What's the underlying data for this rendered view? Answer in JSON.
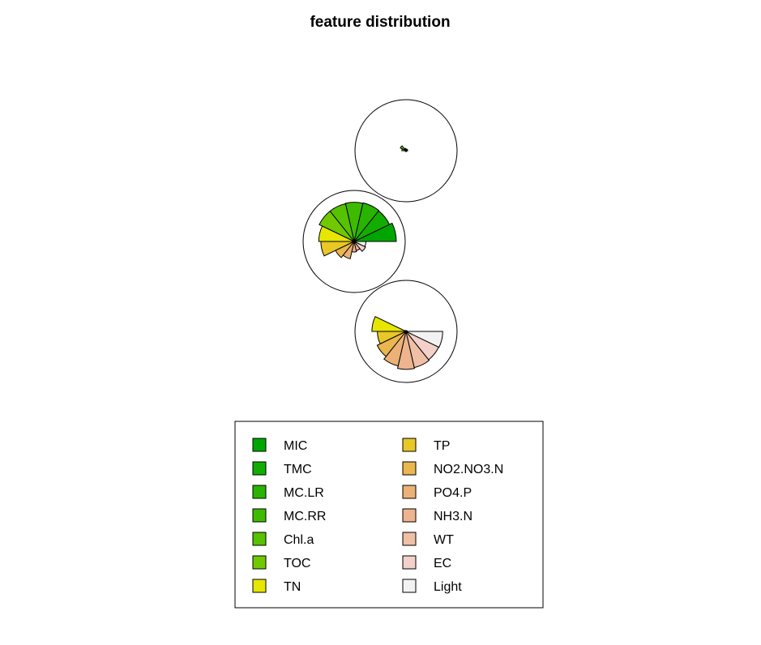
{
  "chart_data": {
    "type": "segment-star",
    "title": "feature distribution",
    "features": [
      "MIC",
      "TMC",
      "MC.LR",
      "MC.RR",
      "Chl.a",
      "TOC",
      "TN",
      "TP",
      "NO2.NO3.N",
      "PO4.P",
      "NH3.N",
      "WT",
      "EC",
      "Light"
    ],
    "colors": [
      "#00A600",
      "#13AD00",
      "#28B400",
      "#3EBB00",
      "#56C200",
      "#70C900",
      "#8BD000",
      "#A7D700",
      "#C4DE00",
      "#E3E500",
      "#E6D31E",
      "#E8C32E",
      "#EBB43E",
      "#EDA84D"
    ],
    "legend_colors": [
      "#00A600",
      "#13AD00",
      "#28B400",
      "#3EBB00",
      "#56C200",
      "#70C900",
      "#E6E600",
      "#E8C727",
      "#EAB64E",
      "#ECB176",
      "#EDB48E",
      "#EFBFA6",
      "#F1D1C9",
      "#F2F2F2"
    ],
    "series": [
      {
        "values": [
          0.04,
          0.04,
          0.04,
          0.04,
          0.06,
          0.15,
          0.1,
          0.02,
          0.02,
          0.02,
          0.02,
          0.02,
          0.02,
          0.02
        ]
      },
      {
        "values": [
          1.0,
          0.93,
          0.94,
          0.93,
          0.92,
          0.92,
          0.84,
          0.79,
          0.49,
          0.42,
          0.25,
          0.22,
          0.3,
          0.28
        ]
      },
      {
        "values": [
          0.03,
          0.02,
          0.02,
          0.02,
          0.02,
          0.03,
          0.81,
          0.68,
          0.76,
          0.84,
          0.9,
          0.88,
          0.86,
          0.87
        ]
      }
    ],
    "legend": {
      "position": "bottom",
      "columns": 2,
      "box": true
    }
  }
}
